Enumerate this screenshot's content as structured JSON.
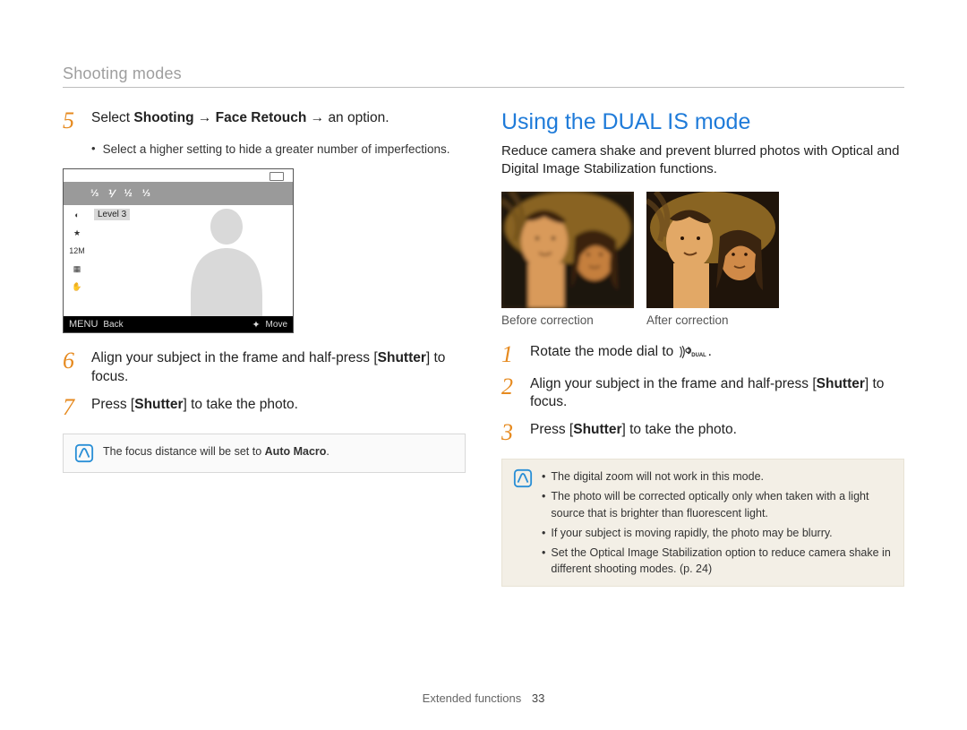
{
  "header": {
    "title": "Shooting modes"
  },
  "left": {
    "step5": {
      "num": "5",
      "prefix": "Select ",
      "bold1": "Shooting",
      "arrow1": " → ",
      "bold2": "Face Retouch",
      "arrow2": " → ",
      "suffix": "an option.",
      "bullet": "Select a higher setting to hide a greater number of imperfections."
    },
    "lcd": {
      "bar_items": [
        "⅓",
        "⅟",
        "½",
        "⅓"
      ],
      "level_label": "Level 3",
      "side_icons": [
        "◐",
        "★",
        "12M",
        "▦",
        "✋"
      ],
      "back_label": "Back",
      "move_label": "Move",
      "menu_label": "MENU",
      "move_glyph": "✦"
    },
    "step6": {
      "num": "6",
      "text_before": "Align your subject in the frame and half-press [",
      "bold": "Shutter",
      "text_after": "] to focus."
    },
    "step7": {
      "num": "7",
      "text_before": "Press [",
      "bold": "Shutter",
      "text_after": "] to take the photo."
    },
    "note": {
      "text_before": "The focus distance will be set to ",
      "bold": "Auto Macro",
      "text_after": "."
    }
  },
  "right": {
    "title": "Using the DUAL IS mode",
    "intro": "Reduce camera shake and prevent blurred photos with Optical and Digital Image Stabilization functions.",
    "captions": {
      "before": "Before correction",
      "after": "After correction"
    },
    "step1": {
      "num": "1",
      "text_before": "Rotate the mode dial to ",
      "icon_label": "DUAL",
      "text_after": "."
    },
    "step2": {
      "num": "2",
      "text_before": "Align your subject in the frame and half-press [",
      "bold": "Shutter",
      "text_after": "] to focus."
    },
    "step3": {
      "num": "3",
      "text_before": "Press [",
      "bold": "Shutter",
      "text_after": "] to take the photo."
    },
    "note_items": [
      "The digital zoom will not work in this mode.",
      "The photo will be corrected optically only when taken with a light source that is brighter than fluorescent light.",
      "If your subject is moving rapidly, the photo may be blurry.",
      "Set the Optical Image Stabilization option to reduce camera shake in different shooting modes. (p. 24)"
    ]
  },
  "footer": {
    "section": "Extended functions",
    "page": "33"
  },
  "colors": {
    "accent_orange": "#e68a1f",
    "accent_blue": "#1f7bd9",
    "note_icon": "#2a8fd6",
    "header_grey": "#9e9e9e"
  },
  "photos": {
    "before": {
      "bg": "#1f140a",
      "palm": "#6b4a1e",
      "sun": "#f3b33a",
      "face_a": "#d99a5a",
      "face_b": "#c57f3d",
      "hair": "#3a240f",
      "blur": 2.2
    },
    "after": {
      "bg": "#1f140a",
      "palm": "#6b4a1e",
      "sun": "#f3b33a",
      "face_a": "#e2a866",
      "face_b": "#d08a48",
      "hair": "#3a240f",
      "blur": 0
    }
  }
}
